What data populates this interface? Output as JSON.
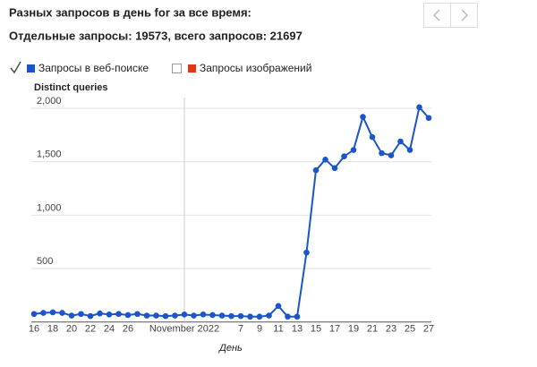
{
  "header": {
    "title": "Разных запросов в день for за все время:",
    "totals": "Отдельные запросы: 19573, всего запросов: 21697"
  },
  "chart_data": {
    "type": "line",
    "ylabel": "Distinct queries",
    "xlabel": "День",
    "categories": [
      "16",
      null,
      "18",
      null,
      "20",
      null,
      "22",
      null,
      "24",
      null,
      "26",
      null,
      null,
      null,
      null,
      null,
      "November 2022",
      null,
      null,
      null,
      null,
      null,
      "7",
      null,
      "9",
      null,
      "11",
      null,
      "13",
      null,
      "15",
      null,
      "17",
      null,
      "19",
      null,
      "21",
      null,
      "23",
      null,
      "25",
      null,
      "27"
    ],
    "series": [
      {
        "name": "Запросы в веб-поиске",
        "color": "#1a56c9",
        "checked": true,
        "values": [
          75,
          85,
          90,
          85,
          60,
          75,
          55,
          80,
          70,
          75,
          65,
          75,
          60,
          60,
          55,
          60,
          70,
          60,
          70,
          65,
          60,
          55,
          55,
          50,
          50,
          60,
          150,
          50,
          50,
          650,
          1420,
          1520,
          1440,
          1550,
          1610,
          1920,
          1730,
          1580,
          1560,
          1690,
          1610,
          2010,
          1910
        ]
      },
      {
        "name": "Запросы изображений",
        "color": "#dc3912",
        "checked": false
      }
    ],
    "ylim": [
      0,
      2000
    ],
    "yticks": [
      500,
      {
        "value": 1000,
        "label": "1,000"
      },
      {
        "value": 1500,
        "label": "1,500"
      },
      {
        "value": 2000,
        "label": "2,000"
      }
    ],
    "grid": true
  }
}
